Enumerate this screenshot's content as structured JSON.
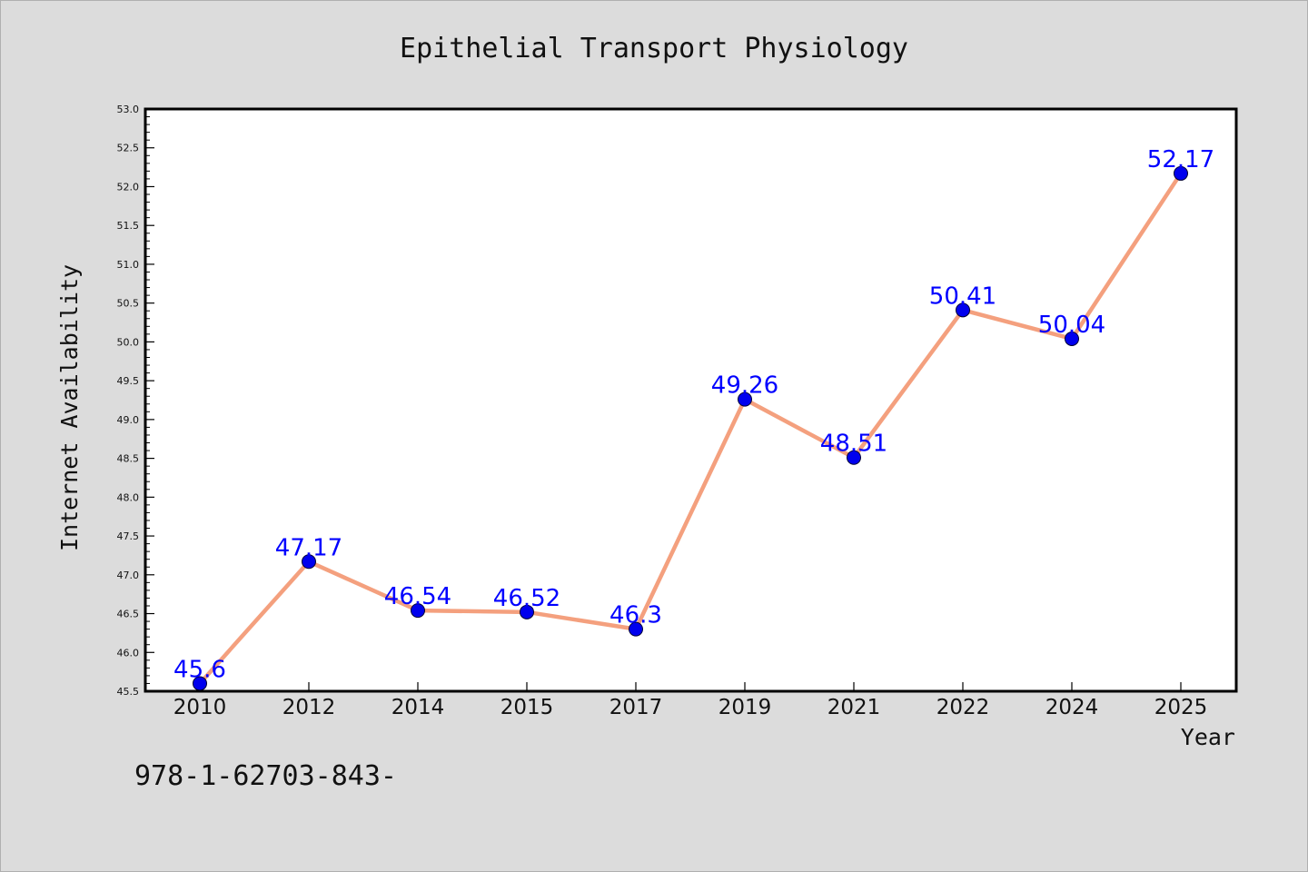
{
  "chart_data": {
    "type": "line",
    "title": "Epithelial Transport Physiology",
    "xlabel": "Year",
    "ylabel": "Internet Availability",
    "categories": [
      "2010",
      "2012",
      "2014",
      "2015",
      "2017",
      "2019",
      "2021",
      "2022",
      "2024",
      "2025"
    ],
    "values": [
      45.6,
      47.17,
      46.54,
      46.52,
      46.3,
      49.26,
      48.51,
      50.41,
      50.04,
      52.17
    ],
    "data_labels": [
      "45.6",
      "47.17",
      "46.54",
      "46.52",
      "46.3",
      "49.26",
      "48.51",
      "50.41",
      "50.04",
      "52.17"
    ],
    "ylim": [
      45.5,
      53.0
    ],
    "yticks": [
      45.5,
      46.0,
      46.5,
      47.0,
      47.5,
      48.0,
      48.5,
      49.0,
      49.5,
      50.0,
      50.5,
      51.0,
      51.5,
      52.0,
      52.5,
      53.0
    ],
    "grid": false,
    "line_color": "#f4a07e",
    "marker_color": "#0000ee",
    "label_color": "#0000ff"
  },
  "footer": {
    "text": "978-1-62703-843-"
  }
}
